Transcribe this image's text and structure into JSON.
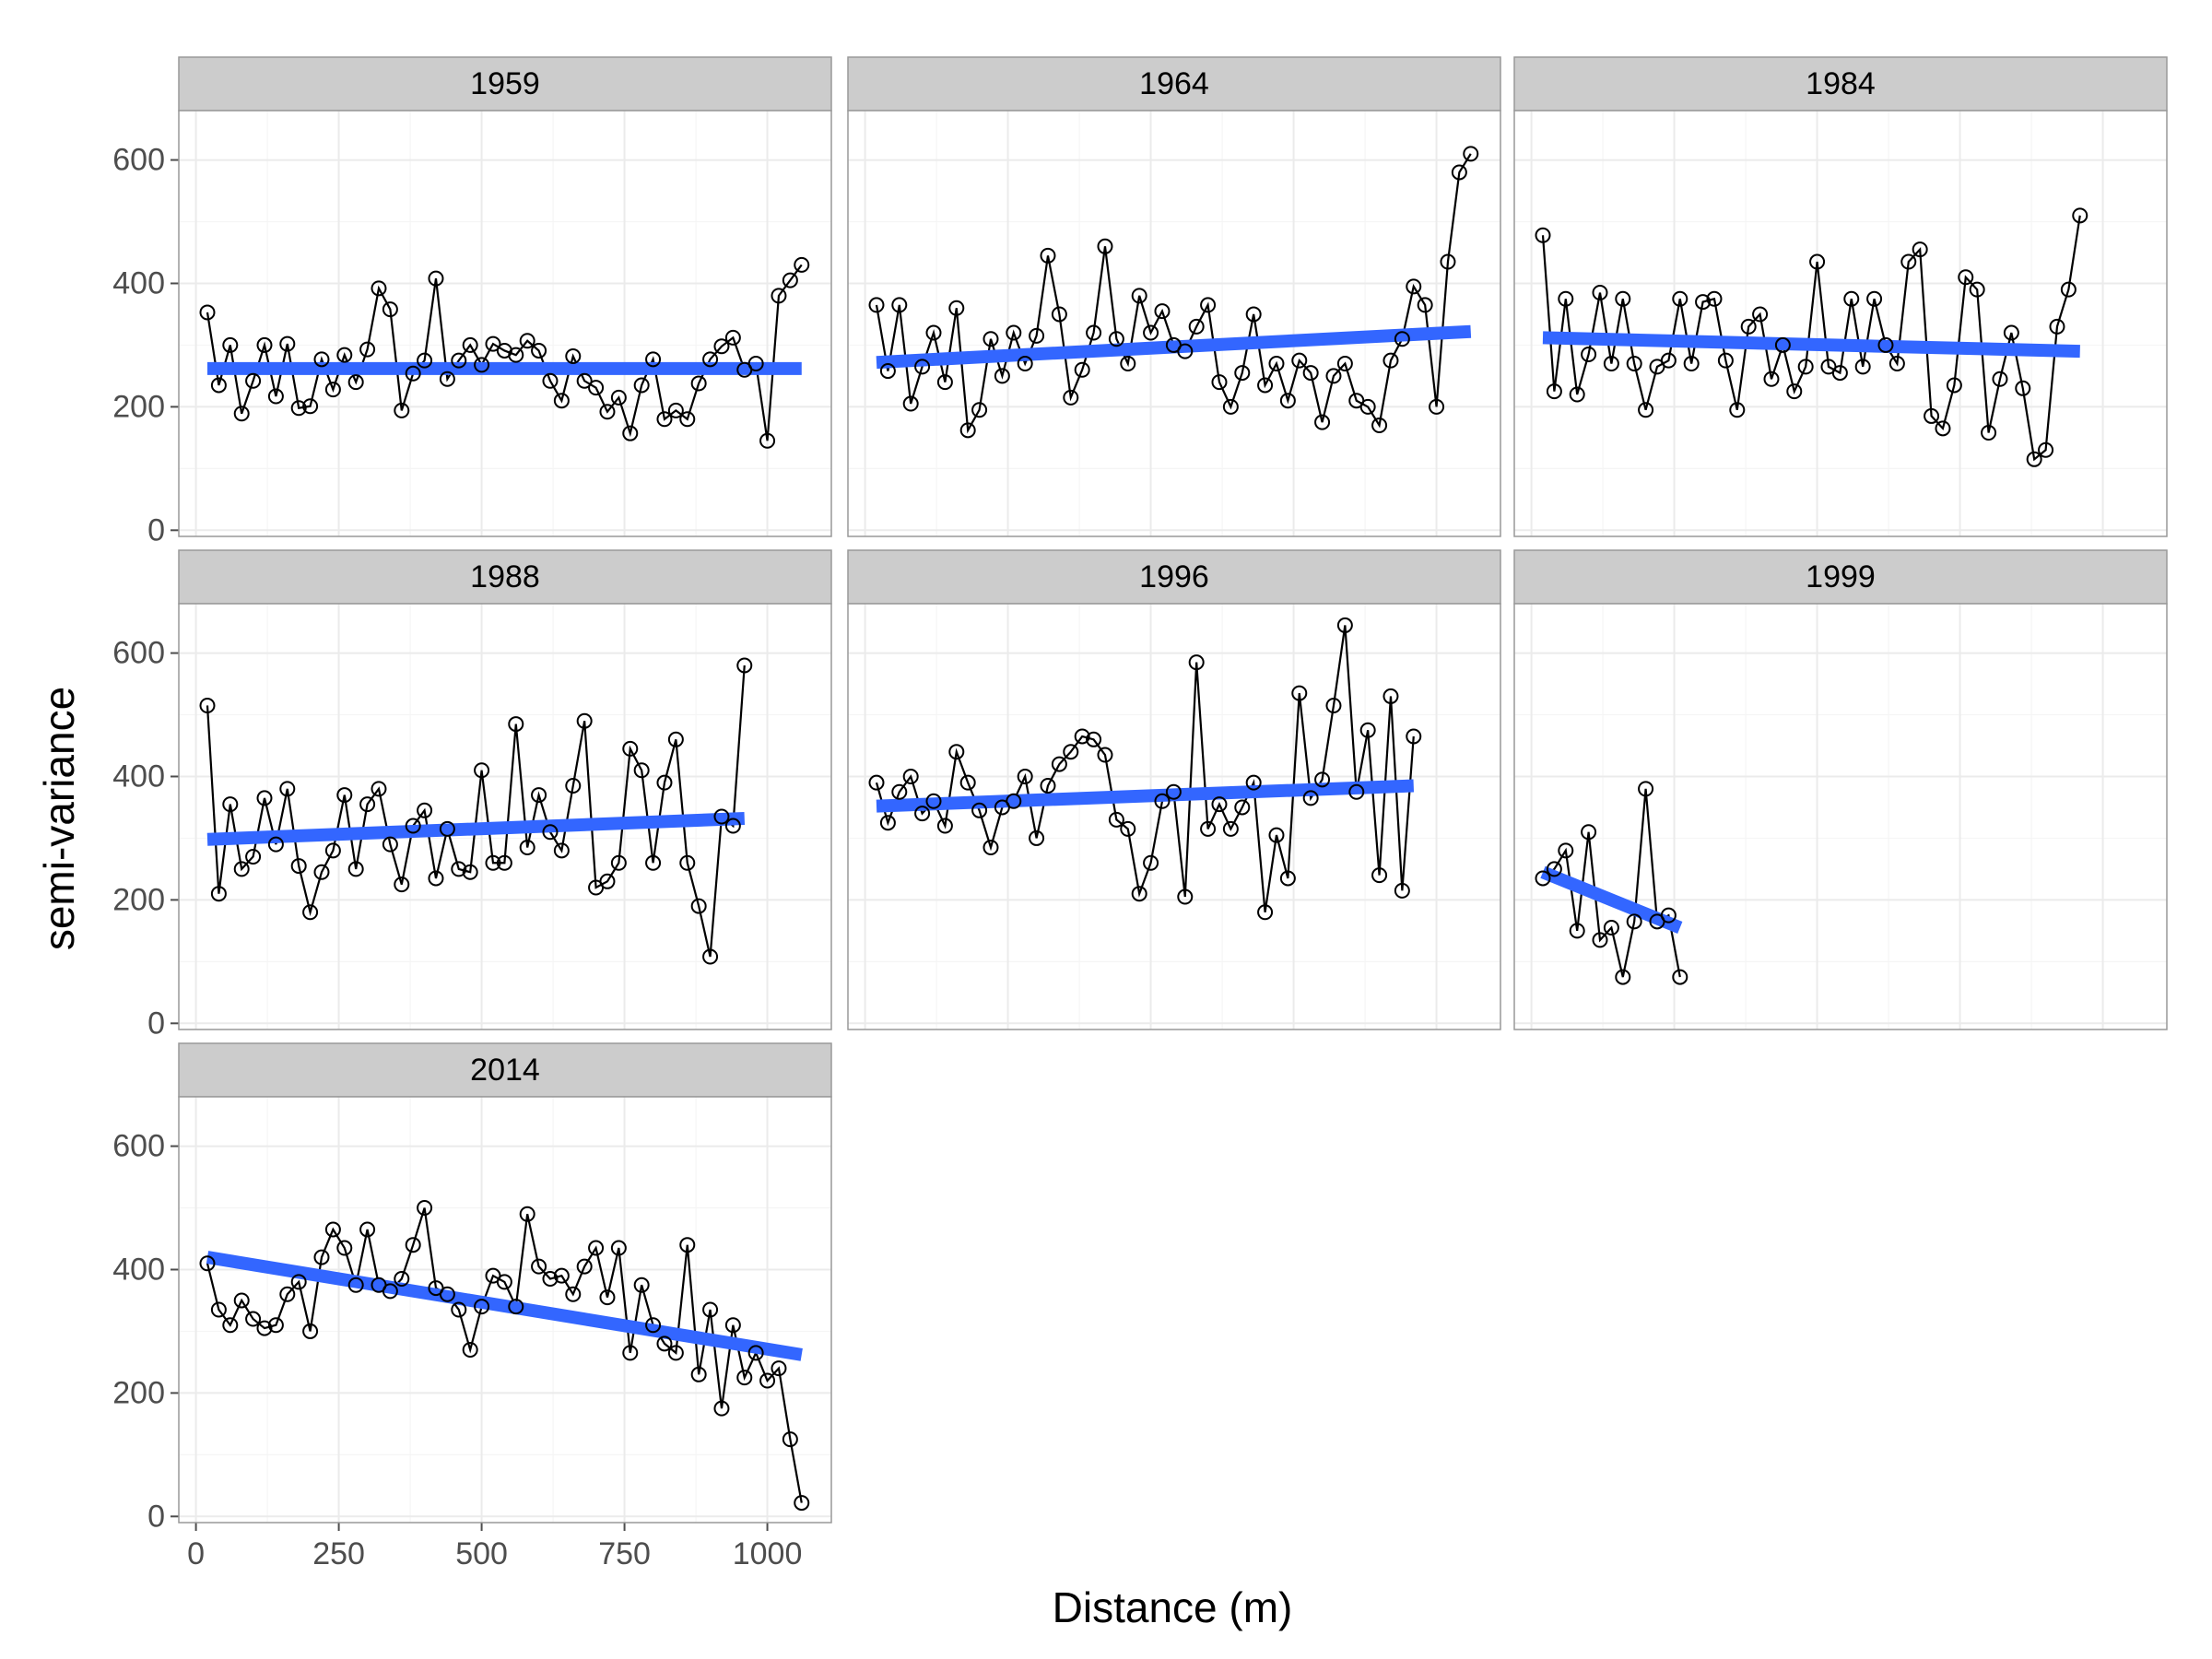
{
  "chart_data": {
    "type": "line",
    "xlabel": "Distance (m)",
    "ylabel": "semi-variance",
    "xlim": [
      -30,
      1112
    ],
    "ylim": [
      -10,
      680
    ],
    "xticks": [
      0,
      250,
      500,
      750,
      1000
    ],
    "yticks": [
      0,
      200,
      400,
      600
    ],
    "grid": true,
    "line_color": "#000000",
    "fit_color": "#3366ff",
    "facets": [
      {
        "name": "1959",
        "x": [
          20,
          40,
          60,
          80,
          100,
          120,
          140,
          160,
          180,
          200,
          220,
          240,
          260,
          280,
          300,
          320,
          340,
          360,
          380,
          400,
          420,
          440,
          460,
          480,
          500,
          520,
          540,
          560,
          580,
          600,
          620,
          640,
          660,
          680,
          700,
          720,
          740,
          760,
          780,
          800,
          820,
          840,
          860,
          880,
          900,
          920,
          940,
          960,
          980,
          1000,
          1020,
          1040,
          1060
        ],
        "values": [
          353,
          235,
          300,
          189,
          242,
          300,
          217,
          302,
          198,
          201,
          277,
          228,
          284,
          240,
          293,
          392,
          358,
          194,
          254,
          275,
          408,
          245,
          275,
          300,
          268,
          302,
          291,
          284,
          307,
          291,
          242,
          210,
          282,
          242,
          231,
          192,
          215,
          157,
          235,
          277,
          180,
          194,
          180,
          238,
          277,
          298,
          312,
          260,
          270,
          145,
          380,
          405,
          430
        ],
        "fit": [
          262,
          262
        ]
      },
      {
        "name": "1964",
        "x": [
          20,
          40,
          60,
          80,
          100,
          120,
          140,
          160,
          180,
          200,
          220,
          240,
          260,
          280,
          300,
          320,
          340,
          360,
          380,
          400,
          420,
          440,
          460,
          480,
          500,
          520,
          540,
          560,
          580,
          600,
          620,
          640,
          660,
          680,
          700,
          720,
          740,
          760,
          780,
          800,
          820,
          840,
          860,
          880,
          900,
          920,
          940,
          960,
          980,
          1000,
          1020,
          1040,
          1060
        ],
        "values": [
          365,
          258,
          365,
          205,
          265,
          320,
          240,
          360,
          162,
          195,
          310,
          250,
          320,
          270,
          315,
          445,
          350,
          215,
          260,
          320,
          460,
          310,
          270,
          380,
          320,
          355,
          300,
          290,
          330,
          365,
          240,
          200,
          255,
          350,
          235,
          270,
          210,
          275,
          255,
          175,
          250,
          270,
          210,
          200,
          170,
          275,
          310,
          395,
          365,
          200,
          435,
          580,
          610
        ],
        "fit": [
          272,
          322
        ]
      },
      {
        "name": "1984",
        "x": [
          20,
          40,
          60,
          80,
          100,
          120,
          140,
          160,
          180,
          200,
          220,
          240,
          260,
          280,
          300,
          320,
          340,
          360,
          380,
          400,
          420,
          440,
          460,
          480,
          500,
          520,
          540,
          560,
          580,
          600,
          620,
          640,
          660,
          680,
          700,
          720,
          740,
          760,
          780,
          800,
          820,
          840,
          860,
          880,
          900,
          920,
          940,
          960
        ],
        "values": [
          478,
          225,
          375,
          220,
          285,
          385,
          270,
          375,
          270,
          195,
          265,
          275,
          375,
          270,
          370,
          375,
          275,
          195,
          330,
          350,
          245,
          300,
          225,
          265,
          435,
          265,
          255,
          375,
          265,
          375,
          300,
          270,
          435,
          455,
          185,
          165,
          235,
          410,
          390,
          158,
          245,
          320,
          230,
          115,
          130,
          330,
          390,
          510
        ],
        "fit": [
          312,
          290
        ]
      },
      {
        "name": "1988",
        "x": [
          20,
          40,
          60,
          80,
          100,
          120,
          140,
          160,
          180,
          200,
          220,
          240,
          260,
          280,
          300,
          320,
          340,
          360,
          380,
          400,
          420,
          440,
          460,
          480,
          500,
          520,
          540,
          560,
          580,
          600,
          620,
          640,
          660,
          680,
          700,
          720,
          740,
          760,
          780,
          800,
          820,
          840,
          860,
          880,
          900,
          920,
          940,
          960
        ],
        "values": [
          515,
          210,
          355,
          250,
          270,
          365,
          290,
          380,
          255,
          180,
          245,
          280,
          370,
          250,
          355,
          380,
          290,
          225,
          320,
          345,
          235,
          315,
          250,
          245,
          410,
          260,
          260,
          485,
          285,
          370,
          310,
          280,
          385,
          490,
          220,
          230,
          260,
          445,
          410,
          260,
          390,
          460,
          260,
          190,
          108,
          335,
          320,
          580
        ],
        "fit": [
          298,
          332
        ]
      },
      {
        "name": "1996",
        "x": [
          20,
          40,
          60,
          80,
          100,
          120,
          140,
          160,
          180,
          200,
          220,
          240,
          260,
          280,
          300,
          320,
          340,
          360,
          380,
          400,
          420,
          440,
          460,
          480,
          500,
          520,
          540,
          560,
          580,
          600,
          620,
          640,
          660,
          680,
          700,
          720,
          740,
          760,
          780,
          800,
          820,
          840,
          860,
          880,
          900,
          920,
          940,
          960
        ],
        "values": [
          390,
          325,
          375,
          400,
          340,
          360,
          320,
          440,
          390,
          345,
          285,
          350,
          360,
          400,
          300,
          385,
          420,
          440,
          465,
          460,
          435,
          330,
          315,
          210,
          260,
          360,
          375,
          205,
          585,
          315,
          355,
          315,
          350,
          390,
          180,
          305,
          235,
          535,
          365,
          395,
          515,
          645,
          375,
          475,
          240,
          530,
          215,
          465
        ],
        "fit": [
          352,
          385
        ]
      },
      {
        "name": "1999",
        "x": [
          20,
          40,
          60,
          80,
          100,
          120,
          140,
          160,
          180,
          200,
          220,
          240,
          260
        ],
        "values": [
          235,
          250,
          280,
          150,
          310,
          135,
          155,
          75,
          165,
          380,
          165,
          175,
          75
        ],
        "fit": [
          245,
          155
        ]
      },
      {
        "name": "2014",
        "x": [
          20,
          40,
          60,
          80,
          100,
          120,
          140,
          160,
          180,
          200,
          220,
          240,
          260,
          280,
          300,
          320,
          340,
          360,
          380,
          400,
          420,
          440,
          460,
          480,
          500,
          520,
          540,
          560,
          580,
          600,
          620,
          640,
          660,
          680,
          700,
          720,
          740,
          760,
          780,
          800,
          820,
          840,
          860,
          880,
          900,
          920,
          940,
          960,
          980,
          1000,
          1020,
          1040,
          1060
        ],
        "values": [
          410,
          335,
          310,
          350,
          320,
          305,
          310,
          360,
          380,
          300,
          420,
          465,
          435,
          375,
          465,
          375,
          365,
          385,
          440,
          500,
          370,
          360,
          335,
          270,
          340,
          390,
          380,
          340,
          490,
          405,
          385,
          390,
          360,
          405,
          435,
          355,
          435,
          265,
          375,
          310,
          280,
          265,
          440,
          230,
          335,
          175,
          310,
          225,
          265,
          220,
          240,
          125,
          22
        ],
        "fit": [
          420,
          262
        ]
      }
    ]
  }
}
